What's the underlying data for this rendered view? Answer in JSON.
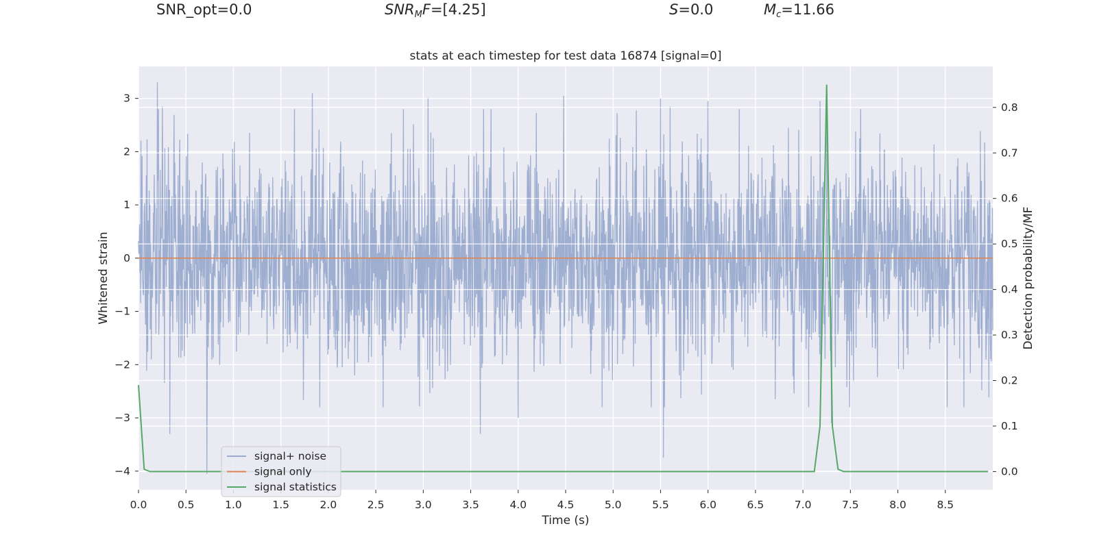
{
  "header": {
    "snr_opt": "SNR_opt=0.0",
    "snr_mf_label": "SNR",
    "snr_mf_sub": "M",
    "snr_mf_tail": "F",
    "snr_mf_value": "=[4.25]",
    "s_label": "S",
    "s_value": "=0.0",
    "mc_label": "M",
    "mc_sub": "c",
    "mc_value": "=11.66"
  },
  "chart_data": {
    "type": "line",
    "title": "stats at each timestep for test data 16874 [signal=0]",
    "xlabel": "Time (s)",
    "ylabel": "Whitened strain",
    "y2label": "Detection probability/MF",
    "xlim": [
      0,
      9.0
    ],
    "ylim": [
      -4.35,
      3.6
    ],
    "y2lim": [
      -0.04,
      0.89
    ],
    "xticks": [
      "0.0",
      "0.5",
      "1.0",
      "1.5",
      "2.0",
      "2.5",
      "3.0",
      "3.5",
      "4.0",
      "4.5",
      "5.0",
      "5.5",
      "6.0",
      "6.5",
      "7.0",
      "7.5",
      "8.0",
      "8.5"
    ],
    "yticks": [
      "3",
      "2",
      "1",
      "0",
      "−1",
      "−2",
      "−3",
      "−4"
    ],
    "y2ticks": [
      "0.8",
      "0.7",
      "0.6",
      "0.5",
      "0.4",
      "0.3",
      "0.2",
      "0.1",
      "0.0"
    ],
    "grid": true,
    "legend_position": "lower-left",
    "series": [
      {
        "name": "signal+ noise",
        "color": "#9aabce",
        "axis": "left",
        "description_only": true
      },
      {
        "name": "signal only",
        "color": "#dd8452",
        "axis": "left",
        "x": [
          0,
          9.0
        ],
        "y": [
          0,
          0
        ]
      },
      {
        "name": "signal statistics",
        "color": "#55a868",
        "axis": "right",
        "x": [
          0.0,
          0.06,
          0.12,
          0.5,
          1.0,
          2.0,
          3.0,
          4.0,
          5.0,
          6.0,
          7.0,
          7.12,
          7.18,
          7.25,
          7.31,
          7.37,
          7.43,
          8.0,
          8.95
        ],
        "y": [
          0.19,
          0.005,
          0.0,
          0.0,
          0.0,
          0.0,
          0.0,
          0.0,
          0.0,
          0.0,
          0.0,
          0.0,
          0.1,
          0.85,
          0.1,
          0.005,
          0.0,
          0.0,
          0.0
        ]
      }
    ],
    "noise_peaks": [
      [
        0.2,
        3.3
      ],
      [
        0.25,
        2.85
      ],
      [
        1.83,
        3.1
      ],
      [
        3.05,
        3.0
      ],
      [
        4.48,
        3.05
      ],
      [
        5.5,
        3.0
      ],
      [
        5.6,
        2.85
      ],
      [
        6.0,
        2.95
      ],
      [
        7.18,
        2.95
      ],
      [
        7.25,
        3.0
      ],
      [
        0.72,
        -4.05
      ],
      [
        0.33,
        -3.3
      ],
      [
        3.6,
        -3.3
      ],
      [
        5.53,
        -3.75
      ],
      [
        7.3,
        -3.1
      ],
      [
        4.0,
        -3.0
      ]
    ]
  }
}
